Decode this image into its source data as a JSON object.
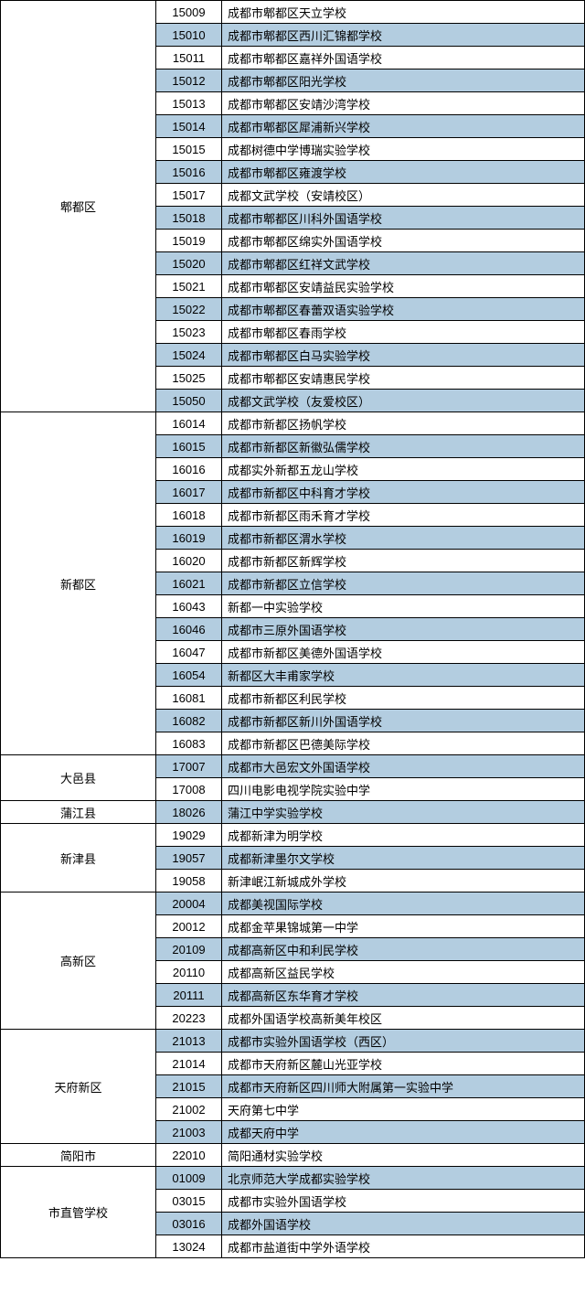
{
  "colors": {
    "stripe": "#b3cde0",
    "border": "#000000",
    "bg": "#ffffff"
  },
  "columns": {
    "district_width": 170,
    "code_width": 72
  },
  "districts": [
    {
      "name": "郫都区",
      "rows": [
        {
          "code": "15009",
          "name": "成都市郫都区天立学校"
        },
        {
          "code": "15010",
          "name": "成都市郫都区西川汇锦都学校"
        },
        {
          "code": "15011",
          "name": "成都市郫都区嘉祥外国语学校"
        },
        {
          "code": "15012",
          "name": "成都市郫都区阳光学校"
        },
        {
          "code": "15013",
          "name": "成都市郫都区安靖沙湾学校"
        },
        {
          "code": "15014",
          "name": "成都市郫都区犀浦新兴学校"
        },
        {
          "code": "15015",
          "name": "成都树德中学博瑞实验学校"
        },
        {
          "code": "15016",
          "name": "成都市郫都区雍渡学校"
        },
        {
          "code": "15017",
          "name": "成都文武学校（安靖校区）"
        },
        {
          "code": "15018",
          "name": "成都市郫都区川科外国语学校"
        },
        {
          "code": "15019",
          "name": "成都市郫都区绵实外国语学校"
        },
        {
          "code": "15020",
          "name": "成都市郫都区红祥文武学校"
        },
        {
          "code": "15021",
          "name": "成都市郫都区安靖益民实验学校"
        },
        {
          "code": "15022",
          "name": "成都市郫都区春蕾双语实验学校"
        },
        {
          "code": "15023",
          "name": "成都市郫都区春雨学校"
        },
        {
          "code": "15024",
          "name": "成都市郫都区白马实验学校"
        },
        {
          "code": "15025",
          "name": "成都市郫都区安靖惠民学校"
        },
        {
          "code": "15050",
          "name": "成都文武学校（友爱校区）"
        }
      ]
    },
    {
      "name": "新都区",
      "rows": [
        {
          "code": "16014",
          "name": "成都市新都区扬帆学校"
        },
        {
          "code": "16015",
          "name": "成都市新都区新徽弘儒学校"
        },
        {
          "code": "16016",
          "name": "成都实外新都五龙山学校"
        },
        {
          "code": "16017",
          "name": "成都市新都区中科育才学校"
        },
        {
          "code": "16018",
          "name": "成都市新都区雨禾育才学校"
        },
        {
          "code": "16019",
          "name": "成都市新都区渭水学校"
        },
        {
          "code": "16020",
          "name": "成都市新都区新辉学校"
        },
        {
          "code": "16021",
          "name": "成都市新都区立信学校"
        },
        {
          "code": "16043",
          "name": "新都一中实验学校"
        },
        {
          "code": "16046",
          "name": "成都市三原外国语学校"
        },
        {
          "code": "16047",
          "name": "成都市新都区美德外国语学校"
        },
        {
          "code": "16054",
          "name": "新都区大丰甫家学校"
        },
        {
          "code": "16081",
          "name": "成都市新都区利民学校"
        },
        {
          "code": "16082",
          "name": "成都市新都区新川外国语学校"
        },
        {
          "code": "16083",
          "name": "成都市新都区巴德美际学校"
        }
      ]
    },
    {
      "name": "大邑县",
      "rows": [
        {
          "code": "17007",
          "name": "成都市大邑宏文外国语学校"
        },
        {
          "code": "17008",
          "name": "四川电影电视学院实验中学"
        }
      ]
    },
    {
      "name": "蒲江县",
      "rows": [
        {
          "code": "18026",
          "name": "蒲江中学实验学校"
        }
      ]
    },
    {
      "name": "新津县",
      "rows": [
        {
          "code": "19029",
          "name": "成都新津为明学校"
        },
        {
          "code": "19057",
          "name": "成都新津墨尔文学校"
        },
        {
          "code": "19058",
          "name": "新津岷江新城成外学校"
        }
      ]
    },
    {
      "name": "高新区",
      "rows": [
        {
          "code": "20004",
          "name": "成都美视国际学校"
        },
        {
          "code": "20012",
          "name": "成都金苹果锦城第一中学"
        },
        {
          "code": "20109",
          "name": "成都高新区中和利民学校"
        },
        {
          "code": "20110",
          "name": "成都高新区益民学校"
        },
        {
          "code": "20111",
          "name": "成都高新区东华育才学校"
        },
        {
          "code": "20223",
          "name": "成都外国语学校高新美年校区"
        }
      ]
    },
    {
      "name": "天府新区",
      "rows": [
        {
          "code": "21013",
          "name": "成都市实验外国语学校（西区）"
        },
        {
          "code": "21014",
          "name": "成都市天府新区麓山光亚学校"
        },
        {
          "code": "21015",
          "name": "成都市天府新区四川师大附属第一实验中学"
        },
        {
          "code": "21002",
          "name": "天府第七中学"
        },
        {
          "code": "21003",
          "name": "成都天府中学"
        }
      ]
    },
    {
      "name": "简阳市",
      "rows": [
        {
          "code": "22010",
          "name": "简阳通材实验学校"
        }
      ]
    },
    {
      "name": "市直管学校",
      "rows": [
        {
          "code": "01009",
          "name": "北京师范大学成都实验学校"
        },
        {
          "code": "03015",
          "name": "成都市实验外国语学校"
        },
        {
          "code": "03016",
          "name": "成都外国语学校"
        },
        {
          "code": "13024",
          "name": "成都市盐道街中学外语学校"
        }
      ]
    }
  ]
}
